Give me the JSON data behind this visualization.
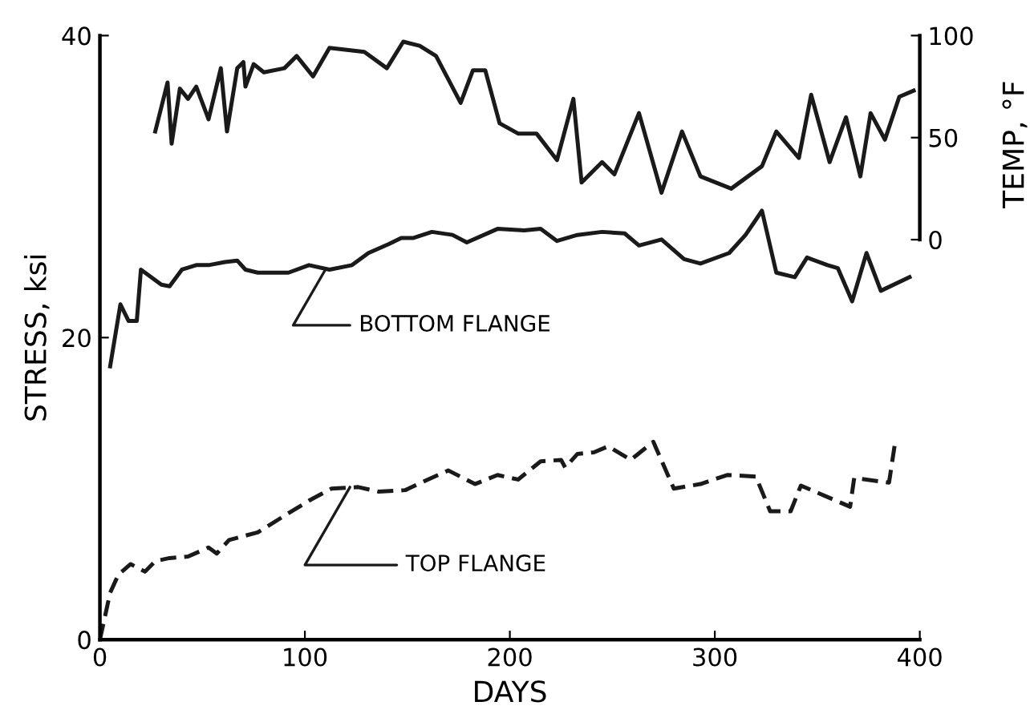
{
  "chart_data": {
    "type": "line",
    "xlabel": "DAYS",
    "ylabel": "STRESS, ksi",
    "y2label": "TEMP, °F",
    "xlim": [
      0,
      400
    ],
    "xticks": [
      0,
      100,
      200,
      300,
      400
    ],
    "ylim": [
      0,
      40
    ],
    "yticks": [
      0,
      20,
      40
    ],
    "y2lim": [
      -196,
      100
    ],
    "y2ticks": [
      0,
      50,
      100
    ],
    "grid": false,
    "legend": false,
    "marker": "none",
    "series": [
      {
        "color": "#1a1a1a",
        "line_style": "solid",
        "axis": "y2",
        "x": [
          27,
          33,
          35,
          39,
          43,
          47,
          53,
          59,
          62,
          67,
          70,
          71,
          75,
          80,
          90,
          96,
          104,
          112,
          129,
          140,
          148,
          156,
          164,
          176,
          182,
          188,
          195,
          204,
          213,
          223,
          231,
          235,
          245,
          251,
          263,
          274,
          284,
          293,
          308,
          323,
          330,
          341,
          347,
          356,
          364,
          371,
          376,
          383,
          390,
          397
        ],
        "values": [
          53,
          77,
          47,
          74,
          69,
          75,
          59,
          84,
          53,
          84,
          87,
          75,
          86,
          82,
          84,
          90,
          80,
          94,
          92,
          84,
          97,
          95,
          90,
          67,
          83,
          83,
          57,
          52,
          52,
          39,
          69,
          28,
          38,
          32,
          62,
          23,
          53,
          31,
          25,
          36,
          53,
          40,
          71,
          38,
          60,
          31,
          62,
          49,
          70,
          73
        ]
      },
      {
        "color": "#1a1a1a",
        "line_style": "solid",
        "x": [
          5,
          10,
          14,
          18,
          20,
          30,
          34,
          40,
          47,
          53,
          61,
          67,
          71,
          77,
          92,
          102,
          112,
          123,
          131,
          141,
          147,
          153,
          162,
          172,
          179,
          194,
          207,
          215,
          223,
          233,
          245,
          256,
          263,
          274,
          285,
          293,
          307,
          315,
          323,
          330,
          339,
          345,
          355,
          360,
          367,
          374,
          381,
          395
        ],
        "values": [
          18.1,
          22.2,
          21.1,
          21.1,
          24.5,
          23.5,
          23.4,
          24.5,
          24.8,
          24.8,
          25.0,
          25.1,
          24.5,
          24.3,
          24.3,
          24.8,
          24.5,
          24.8,
          25.6,
          26.2,
          26.6,
          26.6,
          27.0,
          26.8,
          26.3,
          27.2,
          27.1,
          27.2,
          26.4,
          26.8,
          27.0,
          26.9,
          26.1,
          26.5,
          25.2,
          24.9,
          25.6,
          26.8,
          28.4,
          24.3,
          24.0,
          25.3,
          24.8,
          24.6,
          22.4,
          25.6,
          23.1,
          24.0
        ]
      },
      {
        "color": "#1a1a1a",
        "line_style": "dashed",
        "x": [
          0,
          5,
          9,
          15,
          22,
          27,
          34,
          43,
          53,
          57,
          63,
          77,
          90,
          102,
          113,
          126,
          136,
          149,
          160,
          170,
          183,
          194,
          204,
          215,
          225,
          227,
          233,
          241,
          248,
          259,
          270,
          280,
          293,
          306,
          320,
          327,
          337,
          342,
          366,
          368,
          385,
          388
        ],
        "values": [
          0,
          3.1,
          4.3,
          5.0,
          4.5,
          5.2,
          5.4,
          5.5,
          6.1,
          5.7,
          6.6,
          7.1,
          8.2,
          9.2,
          10.0,
          10.1,
          9.8,
          9.9,
          10.6,
          11.2,
          10.3,
          10.9,
          10.6,
          11.8,
          11.9,
          11.4,
          12.3,
          12.4,
          12.8,
          11.9,
          13.1,
          10.0,
          10.3,
          10.9,
          10.8,
          8.5,
          8.5,
          10.2,
          8.8,
          10.7,
          10.4,
          13.1
        ]
      }
    ],
    "annotations": [
      {
        "text": "BOTTOM FLANGE",
        "x": 110,
        "y": 24.5
      },
      {
        "text": "TOP FLANGE",
        "x": 122,
        "y": 10.1
      }
    ]
  }
}
